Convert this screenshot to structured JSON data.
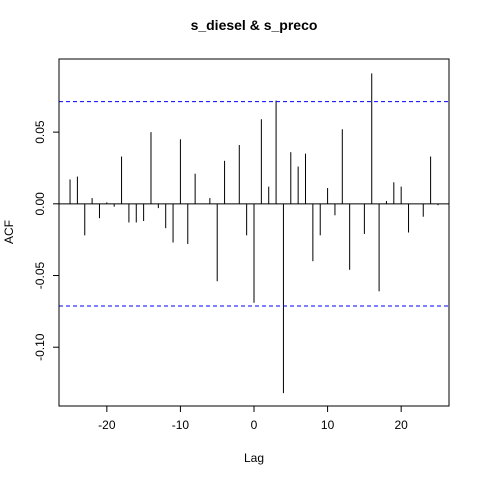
{
  "chart_data": {
    "type": "bar",
    "subtype": "cross-correlogram",
    "title": "s_diesel & s_preco",
    "xlabel": "Lag",
    "ylabel": "ACF",
    "xlim": [
      -26.5,
      26.5
    ],
    "ylim": [
      -0.141,
      0.101
    ],
    "x_ticks": [
      -20,
      -10,
      0,
      10,
      20
    ],
    "x_tick_labels": [
      "-20",
      "-10",
      "0",
      "10",
      "20"
    ],
    "y_ticks": [
      -0.1,
      -0.05,
      0.0,
      0.05
    ],
    "y_tick_labels": [
      "-0.10",
      "-0.05",
      "0.00",
      "0.05"
    ],
    "confidence_bound": 0.0713,
    "grid": false,
    "colors": {
      "spikes": "#000000",
      "confidence_lines": "#0000ff",
      "zero_line": "#000000"
    },
    "lags": [
      -25,
      -24,
      -23,
      -22,
      -21,
      -20,
      -19,
      -18,
      -17,
      -16,
      -15,
      -14,
      -13,
      -12,
      -11,
      -10,
      -9,
      -8,
      -7,
      -6,
      -5,
      -4,
      -3,
      -2,
      -1,
      0,
      1,
      2,
      3,
      4,
      5,
      6,
      7,
      8,
      9,
      10,
      11,
      12,
      13,
      14,
      15,
      16,
      17,
      18,
      19,
      20,
      21,
      22,
      23,
      24,
      25
    ],
    "values": [
      0.017,
      0.019,
      -0.022,
      0.004,
      -0.01,
      0.001,
      -0.002,
      0.033,
      -0.013,
      -0.013,
      -0.012,
      0.05,
      -0.003,
      -0.017,
      -0.027,
      0.045,
      -0.028,
      0.021,
      0.0,
      0.004,
      -0.054,
      0.03,
      0.0,
      0.041,
      -0.022,
      -0.069,
      0.059,
      0.012,
      0.072,
      -0.132,
      0.036,
      0.026,
      0.035,
      -0.04,
      -0.022,
      0.011,
      -0.008,
      0.052,
      -0.046,
      0.0,
      -0.021,
      0.091,
      -0.061,
      0.002,
      0.015,
      0.012,
      -0.02,
      0.0,
      -0.009,
      0.033,
      -0.001
    ]
  }
}
